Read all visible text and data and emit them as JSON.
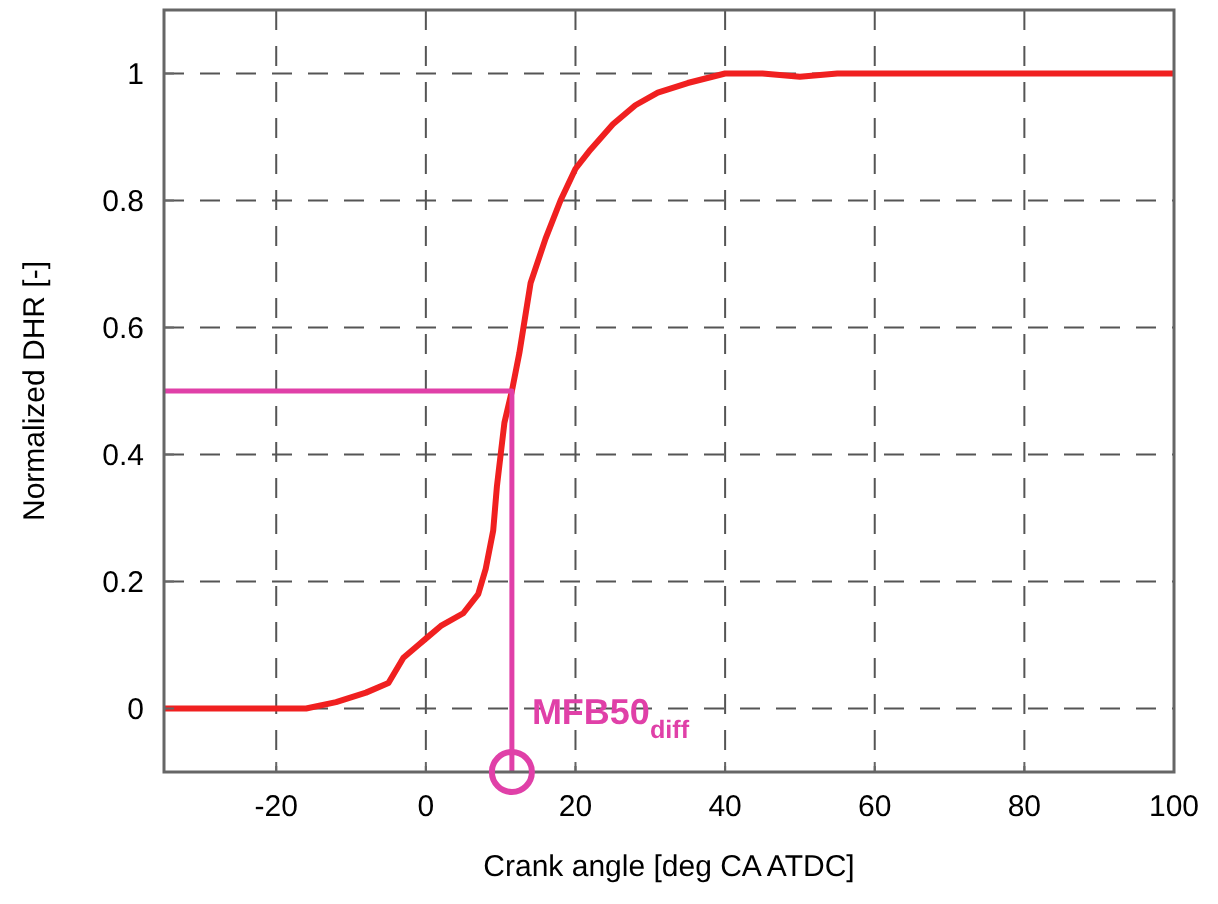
{
  "chart_data": {
    "type": "line",
    "xlabel": "Crank angle [deg CA ATDC]",
    "ylabel": "Normalized DHR [-]",
    "xlim": [
      -35,
      100
    ],
    "xticks": [
      -20,
      0,
      20,
      40,
      60,
      80,
      100
    ],
    "ylim": [
      -0.1,
      1.1
    ],
    "yticks": [
      0,
      0.2,
      0.4,
      0.6,
      0.8,
      1
    ],
    "grid": true,
    "line_style": "solid",
    "series": [
      {
        "color": "#f02020",
        "x": [
          -35,
          -16,
          -12,
          -8,
          -5,
          -3,
          -1,
          0,
          2,
          5,
          7,
          8,
          9,
          9.5,
          10.5,
          11.5,
          12.5,
          14,
          16,
          18,
          20,
          22,
          25,
          28,
          31,
          35,
          40,
          45,
          50,
          55,
          60,
          80,
          100
        ],
        "values": [
          0,
          0,
          0.01,
          0.025,
          0.04,
          0.08,
          0.1,
          0.11,
          0.13,
          0.15,
          0.18,
          0.22,
          0.28,
          0.35,
          0.45,
          0.5,
          0.56,
          0.67,
          0.74,
          0.8,
          0.85,
          0.88,
          0.92,
          0.95,
          0.97,
          0.985,
          1,
          1,
          0.995,
          1,
          1,
          1,
          1
        ]
      },
      {
        "type": "line",
        "color": "#e040a8",
        "x": [
          -35,
          11.5,
          11.5
        ],
        "values": [
          0.5,
          0.5,
          -0.1
        ]
      }
    ],
    "annotations": [
      {
        "text": "MFB50$_{diff}$",
        "x": 11.5,
        "y": -0.1
      }
    ]
  }
}
